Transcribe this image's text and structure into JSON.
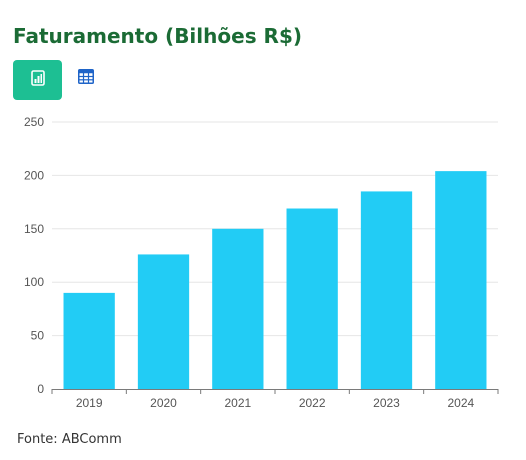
{
  "title": "Faturamento (Bilhões R$)",
  "source": "Fonte: ABComm",
  "toolbar": {
    "chart_view_icon": "chart-icon",
    "table_view_icon": "table-icon"
  },
  "colors": {
    "title": "#1b6b35",
    "active_toggle": "#1dbf93",
    "bar": "#22ccf5",
    "table_icon": "#1f64c8"
  },
  "chart_data": {
    "type": "bar",
    "categories": [
      "2019",
      "2020",
      "2021",
      "2022",
      "2023",
      "2024"
    ],
    "values": [
      90,
      126,
      150,
      169,
      185,
      204
    ],
    "title": "Faturamento (Bilhões R$)",
    "xlabel": "",
    "ylabel": "",
    "ylim": [
      0,
      250
    ],
    "yticks": [
      0,
      50,
      100,
      150,
      200,
      250
    ],
    "grid": true,
    "legend": "none"
  }
}
